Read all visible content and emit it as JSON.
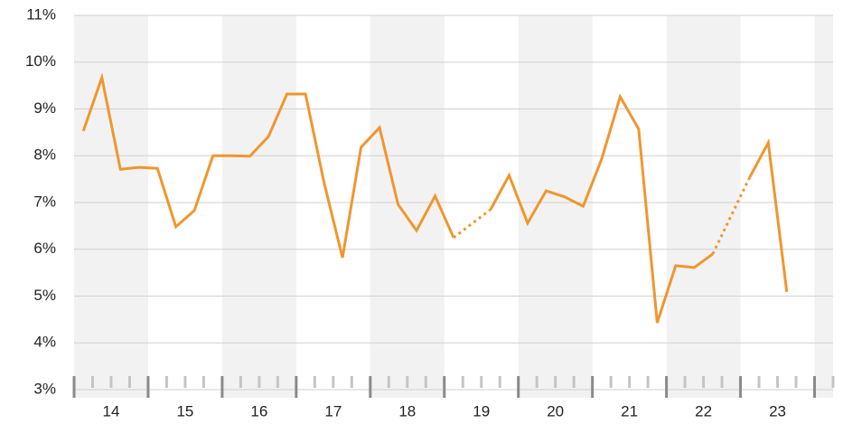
{
  "chart_data": {
    "type": "line",
    "x": [
      14.125,
      14.375,
      14.625,
      14.875,
      15.125,
      15.375,
      15.625,
      15.875,
      16.125,
      16.375,
      16.625,
      16.875,
      17.125,
      17.375,
      17.625,
      17.875,
      18.125,
      18.375,
      18.625,
      18.875,
      19.125,
      19.375,
      19.625,
      19.875,
      20.125,
      20.375,
      20.625,
      20.875,
      21.125,
      21.375,
      21.625,
      21.875,
      22.125,
      22.375,
      22.625,
      22.875,
      23.125,
      23.375,
      23.625
    ],
    "series": [
      {
        "color": "#f0962e",
        "values": [
          8.53,
          9.67,
          7.71,
          7.75,
          7.73,
          6.48,
          6.83,
          8.0,
          8.0,
          7.99,
          8.41,
          9.32,
          9.32,
          7.43,
          5.82,
          8.18,
          8.6,
          6.96,
          6.4,
          7.14,
          6.25,
          null,
          6.85,
          7.58,
          6.56,
          7.25,
          7.12,
          6.92,
          7.93,
          9.26,
          8.57,
          4.43,
          5.65,
          5.61,
          5.9,
          null,
          7.54,
          8.28,
          5.09
        ]
      }
    ],
    "xlim": [
      14,
      24.25
    ],
    "xticks": [
      {
        "value": 14.5,
        "label": "14"
      },
      {
        "value": 15.5,
        "label": "15"
      },
      {
        "value": 16.5,
        "label": "16"
      },
      {
        "value": 17.5,
        "label": "17"
      },
      {
        "value": 18.5,
        "label": "18"
      },
      {
        "value": 19.5,
        "label": "19"
      },
      {
        "value": 20.5,
        "label": "20"
      },
      {
        "value": 21.5,
        "label": "21"
      },
      {
        "value": 22.5,
        "label": "22"
      },
      {
        "value": 23.5,
        "label": "23"
      }
    ],
    "ylim": [
      3,
      11
    ],
    "yticks": [
      {
        "value": 3,
        "label": "3%"
      },
      {
        "value": 4,
        "label": "4%"
      },
      {
        "value": 5,
        "label": "5%"
      },
      {
        "value": 6,
        "label": "6%"
      },
      {
        "value": 7,
        "label": "7%"
      },
      {
        "value": 8,
        "label": "8%"
      },
      {
        "value": 9,
        "label": "9%"
      },
      {
        "value": 10,
        "label": "10%"
      },
      {
        "value": 11,
        "label": "11%"
      }
    ],
    "grid": true
  }
}
